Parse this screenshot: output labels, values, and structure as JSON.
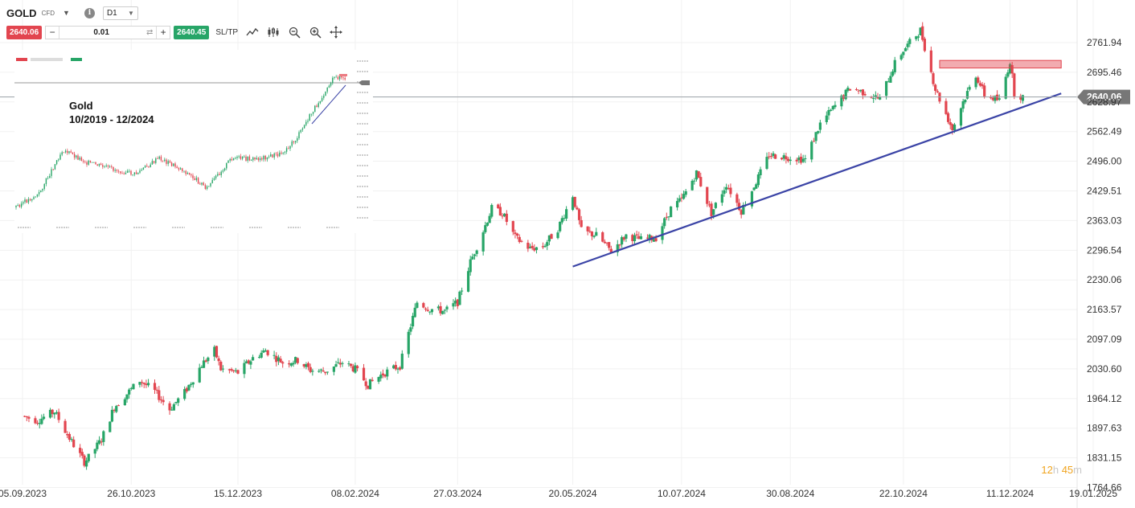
{
  "toolbar": {
    "symbol": "GOLD",
    "instrument_type": "CFD",
    "timeframe": "D1",
    "sell_price": "2640.06",
    "volume": "0.01",
    "buy_price": "2640.45",
    "sltp_label": "SL/TP",
    "tools": [
      "line-chart-icon",
      "candles-icon",
      "zoom-out-icon",
      "zoom-in-icon",
      "crosshair-icon"
    ]
  },
  "colors": {
    "bullish": "#27a567",
    "bearish": "#e2454f",
    "trendline": "#3b44a6",
    "resistance": "#e2454f",
    "price_line": "#9aa0a6"
  },
  "chart_data": {
    "type": "candlestick",
    "symbol": "GOLD",
    "timeframe": "D1",
    "price_axis_ticks": [
      "2761.94",
      "2695.46",
      "2628.97",
      "2562.49",
      "2496.00",
      "2429.51",
      "2363.03",
      "2296.54",
      "2230.06",
      "2163.57",
      "2097.09",
      "2030.60",
      "1964.12",
      "1897.63",
      "1831.15",
      "1764.66"
    ],
    "date_axis_ticks": [
      "05.09.2023",
      "26.10.2023",
      "15.12.2023",
      "08.02.2024",
      "27.03.2024",
      "20.05.2024",
      "10.07.2024",
      "30.08.2024",
      "22.10.2024",
      "11.12.2024",
      "19.01.2025"
    ],
    "current_price": "2640.06",
    "ylim": [
      1764.66,
      2795
    ],
    "price_path": [
      [
        "05.09.2023",
        1925
      ],
      [
        "12.09.2023",
        1915
      ],
      [
        "20.09.2023",
        1935
      ],
      [
        "27.09.2023",
        1875
      ],
      [
        "04.10.2023",
        1822
      ],
      [
        "06.10.2023",
        1832
      ],
      [
        "12.10.2023",
        1872
      ],
      [
        "18.10.2023",
        1945
      ],
      [
        "26.10.2023",
        1985
      ],
      [
        "30.10.2023",
        2005
      ],
      [
        "06.11.2023",
        1980
      ],
      [
        "13.11.2023",
        1940
      ],
      [
        "20.11.2023",
        1978
      ],
      [
        "28.11.2023",
        2040
      ],
      [
        "04.12.2023",
        2072
      ],
      [
        "07.12.2023",
        2030
      ],
      [
        "15.12.2023",
        2022
      ],
      [
        "22.12.2023",
        2055
      ],
      [
        "28.12.2023",
        2072
      ],
      [
        "05.01.2024",
        2045
      ],
      [
        "12.01.2024",
        2050
      ],
      [
        "18.01.2024",
        2028
      ],
      [
        "25.01.2024",
        2025
      ],
      [
        "02.02.2024",
        2045
      ],
      [
        "08.02.2024",
        2030
      ],
      [
        "14.02.2024",
        1995
      ],
      [
        "21.02.2024",
        2020
      ],
      [
        "29.02.2024",
        2038
      ],
      [
        "04.03.2024",
        2110
      ],
      [
        "08.03.2024",
        2180
      ],
      [
        "14.03.2024",
        2165
      ],
      [
        "21.03.2024",
        2160
      ],
      [
        "27.03.2024",
        2180
      ],
      [
        "02.04.2024",
        2270
      ],
      [
        "08.04.2024",
        2340
      ],
      [
        "12.04.2024",
        2390
      ],
      [
        "17.04.2024",
        2380
      ],
      [
        "23.04.2024",
        2325
      ],
      [
        "30.04.2024",
        2300
      ],
      [
        "06.05.2024",
        2305
      ],
      [
        "13.05.2024",
        2345
      ],
      [
        "20.05.2024",
        2420
      ],
      [
        "24.05.2024",
        2340
      ],
      [
        "31.05.2024",
        2330
      ],
      [
        "07.06.2024",
        2295
      ],
      [
        "14.06.2024",
        2330
      ],
      [
        "21.06.2024",
        2320
      ],
      [
        "28.06.2024",
        2325
      ],
      [
        "05.07.2024",
        2390
      ],
      [
        "10.07.2024",
        2410
      ],
      [
        "17.07.2024",
        2470
      ],
      [
        "24.07.2024",
        2380
      ],
      [
        "31.07.2024",
        2445
      ],
      [
        "07.08.2024",
        2385
      ],
      [
        "14.08.2024",
        2450
      ],
      [
        "20.08.2024",
        2510
      ],
      [
        "30.08.2024",
        2505
      ],
      [
        "06.09.2024",
        2500
      ],
      [
        "13.09.2024",
        2580
      ],
      [
        "20.09.2024",
        2620
      ],
      [
        "27.09.2024",
        2660
      ],
      [
        "04.10.2024",
        2650
      ],
      [
        "11.10.2024",
        2635
      ],
      [
        "18.10.2024",
        2715
      ],
      [
        "22.10.2024",
        2745
      ],
      [
        "30.10.2024",
        2790
      ],
      [
        "06.11.2024",
        2658
      ],
      [
        "14.11.2024",
        2568
      ],
      [
        "19.11.2024",
        2630
      ],
      [
        "25.11.2024",
        2690
      ],
      [
        "29.11.2024",
        2645
      ],
      [
        "06.12.2024",
        2632
      ],
      [
        "11.12.2024",
        2720
      ],
      [
        "13.12.2024",
        2650
      ],
      [
        "17.12.2024",
        2640
      ]
    ],
    "trendline": {
      "from": [
        "20.05.2024",
        2260
      ],
      "to": [
        "04.01.2025",
        2648
      ]
    },
    "resistance_zone": {
      "from_date": "08.11.2024",
      "to_date": "04.01.2025",
      "low": 2705,
      "high": 2722
    },
    "inset": {
      "title": "Gold",
      "subtitle": "10/2019 - 12/2024"
    },
    "timer": {
      "hours": "12",
      "hours_unit": "h",
      "minutes": "45",
      "minutes_unit": "m"
    }
  }
}
